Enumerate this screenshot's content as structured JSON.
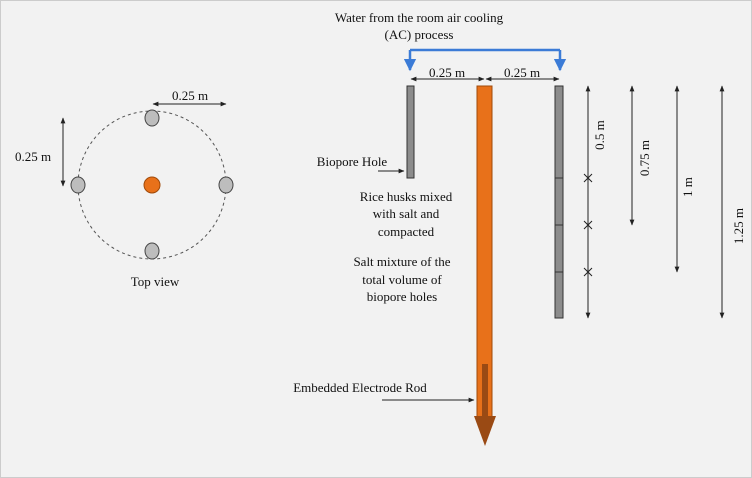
{
  "top_view": {
    "label": "Top view",
    "horizontal_spacing": "0.25 m",
    "vertical_spacing": "0.25 m"
  },
  "side_view": {
    "water_source": [
      "Water from the room air cooling",
      "(AC) process"
    ],
    "spacing_left": "0.25 m",
    "spacing_right": "0.25 m",
    "biopore_hole": "Biopore Hole",
    "rice_husks": [
      "Rice husks mixed",
      "with salt and",
      "compacted"
    ],
    "salt_mixture": [
      "Salt mixture of the",
      "total volume of",
      "biopore holes"
    ],
    "electrode": "Embedded Electrode Rod",
    "depths": [
      "0.5 m",
      "0.75 m",
      "1 m",
      "1.25 m"
    ]
  }
}
